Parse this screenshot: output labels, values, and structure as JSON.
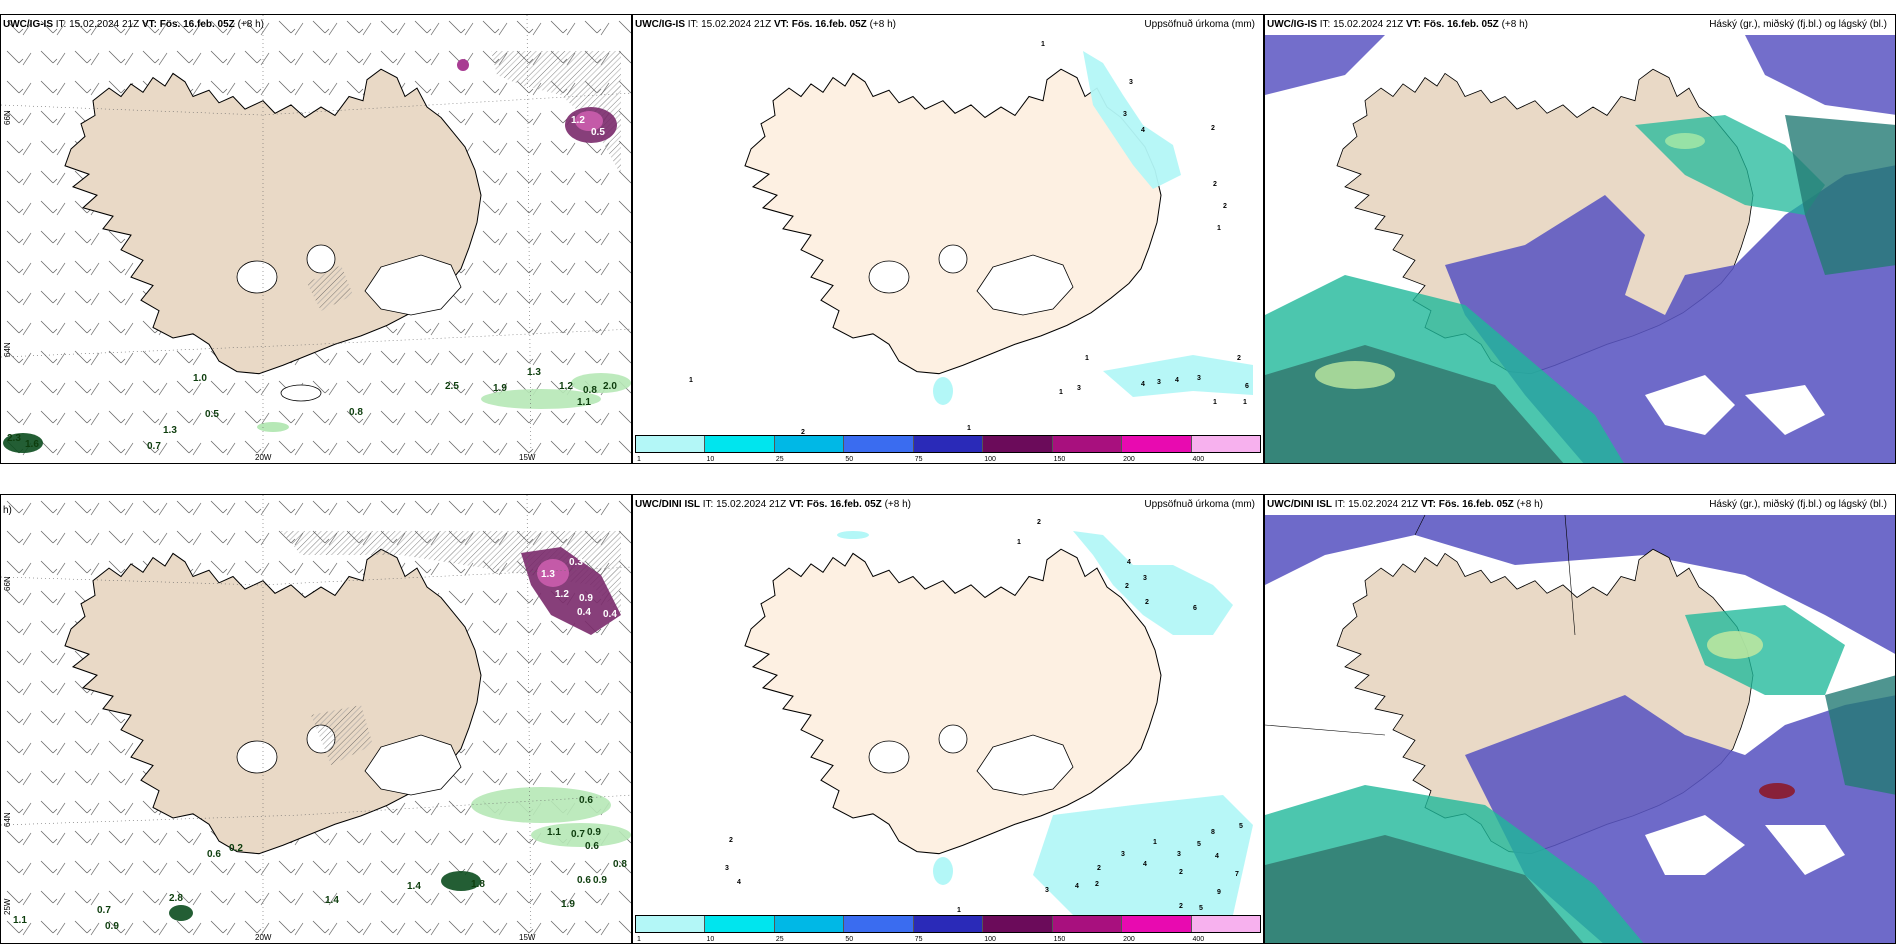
{
  "panels": {
    "p1": {
      "model": "UWC/IG-IS",
      "it_label": "IT:",
      "it": "15.02.2024 21Z",
      "vt_label": "VT:",
      "vt": "Fös. 16.feb. 05Z",
      "lead": "(+8 h)"
    },
    "p2": {
      "model": "UWC/IG-IS",
      "it_label": "IT:",
      "it": "15.02.2024 21Z",
      "vt_label": "VT:",
      "vt": "Fös. 16.feb. 05Z",
      "lead": "(+8 h)",
      "right_title": "Uppsöfnuð úrkoma (mm)"
    },
    "p3": {
      "model": "UWC/IG-IS",
      "it_label": "IT:",
      "it": "15.02.2024 21Z",
      "vt_label": "VT:",
      "vt": "Fös. 16.feb. 05Z",
      "lead": "(+8 h)",
      "right_title": "Háský (gr.), miðský (fj.bl.) og lágský (bl.)"
    },
    "p4": {
      "model": "UWC/DINI ISL",
      "lead_fragment": "h)"
    },
    "p5": {
      "model": "UWC/DINI ISL",
      "it_label": "IT:",
      "it": "15.02.2024 21Z",
      "vt_label": "VT:",
      "vt": "Fös. 16.feb. 05Z",
      "lead": "(+8 h)",
      "right_title": "Uppsöfnuð úrkoma (mm)"
    },
    "p6": {
      "model": "UWC/DINI ISL",
      "it_label": "IT:",
      "it": "15.02.2024 21Z",
      "vt_label": "VT:",
      "vt": "Fös. 16.feb. 05Z",
      "lead": "(+8 h)",
      "right_title": "Háský (gr.), miðský (fj.bl.) og lágský (bl.)"
    }
  },
  "axis_labels": {
    "lat66": "66N",
    "lat64": "64N",
    "lon20": "20W",
    "lon15": "15W",
    "lon25": "25W"
  },
  "colorbar": {
    "ticks": [
      "1",
      "10",
      "25",
      "50",
      "75",
      "100",
      "150",
      "200",
      "400"
    ],
    "colors": [
      "#b3f7f7",
      "#00e5ee",
      "#00b8e6",
      "#3a6cf0",
      "#2a2ab8",
      "#6b0b5a",
      "#a8107e",
      "#e80ab0",
      "#f7b1ee"
    ]
  },
  "precip_labels_p1": [
    "1.0",
    "0.5",
    "1.3",
    "0.7",
    "0.8",
    "2.5",
    "1.9",
    "1.3",
    "1.2",
    "0.8",
    "2.0",
    "1.1",
    "1.2",
    "0.5",
    "2.3",
    "1.6"
  ],
  "precip_labels_p4": [
    "0.3",
    "1.3",
    "1.2",
    "0.9",
    "0.4",
    "0.4",
    "0.6",
    "1.1",
    "0.7",
    "0.9",
    "0.6",
    "0.8",
    "0.6",
    "0.9",
    "1.9",
    "1.4",
    "1.8",
    "1.4",
    "2.8",
    "0.7",
    "0.9",
    "1.1",
    "0.6",
    "0.2"
  ],
  "accum_labels_p2": [
    "1",
    "3",
    "3",
    "4",
    "2",
    "2",
    "2",
    "1",
    "1",
    "2",
    "1",
    "3",
    "4",
    "3",
    "4",
    "3",
    "6",
    "1",
    "1",
    "1",
    "2",
    "1"
  ],
  "accum_labels_p5": [
    "2",
    "1",
    "4",
    "2",
    "3",
    "6",
    "2",
    "2",
    "3",
    "4",
    "1",
    "2",
    "3",
    "4",
    "5",
    "8",
    "5",
    "4",
    "7",
    "9",
    "2",
    "3",
    "3",
    "4",
    "2",
    "1",
    "2",
    "5"
  ],
  "colors": {
    "land": "#e9d9c6",
    "land_p2": "#fdf0e2",
    "cloud_low": "#5a55c2",
    "cloud_mid": "#1fb89a",
    "snow_green": "#b6e8b6",
    "purple_precip": "#7a2a6c"
  }
}
